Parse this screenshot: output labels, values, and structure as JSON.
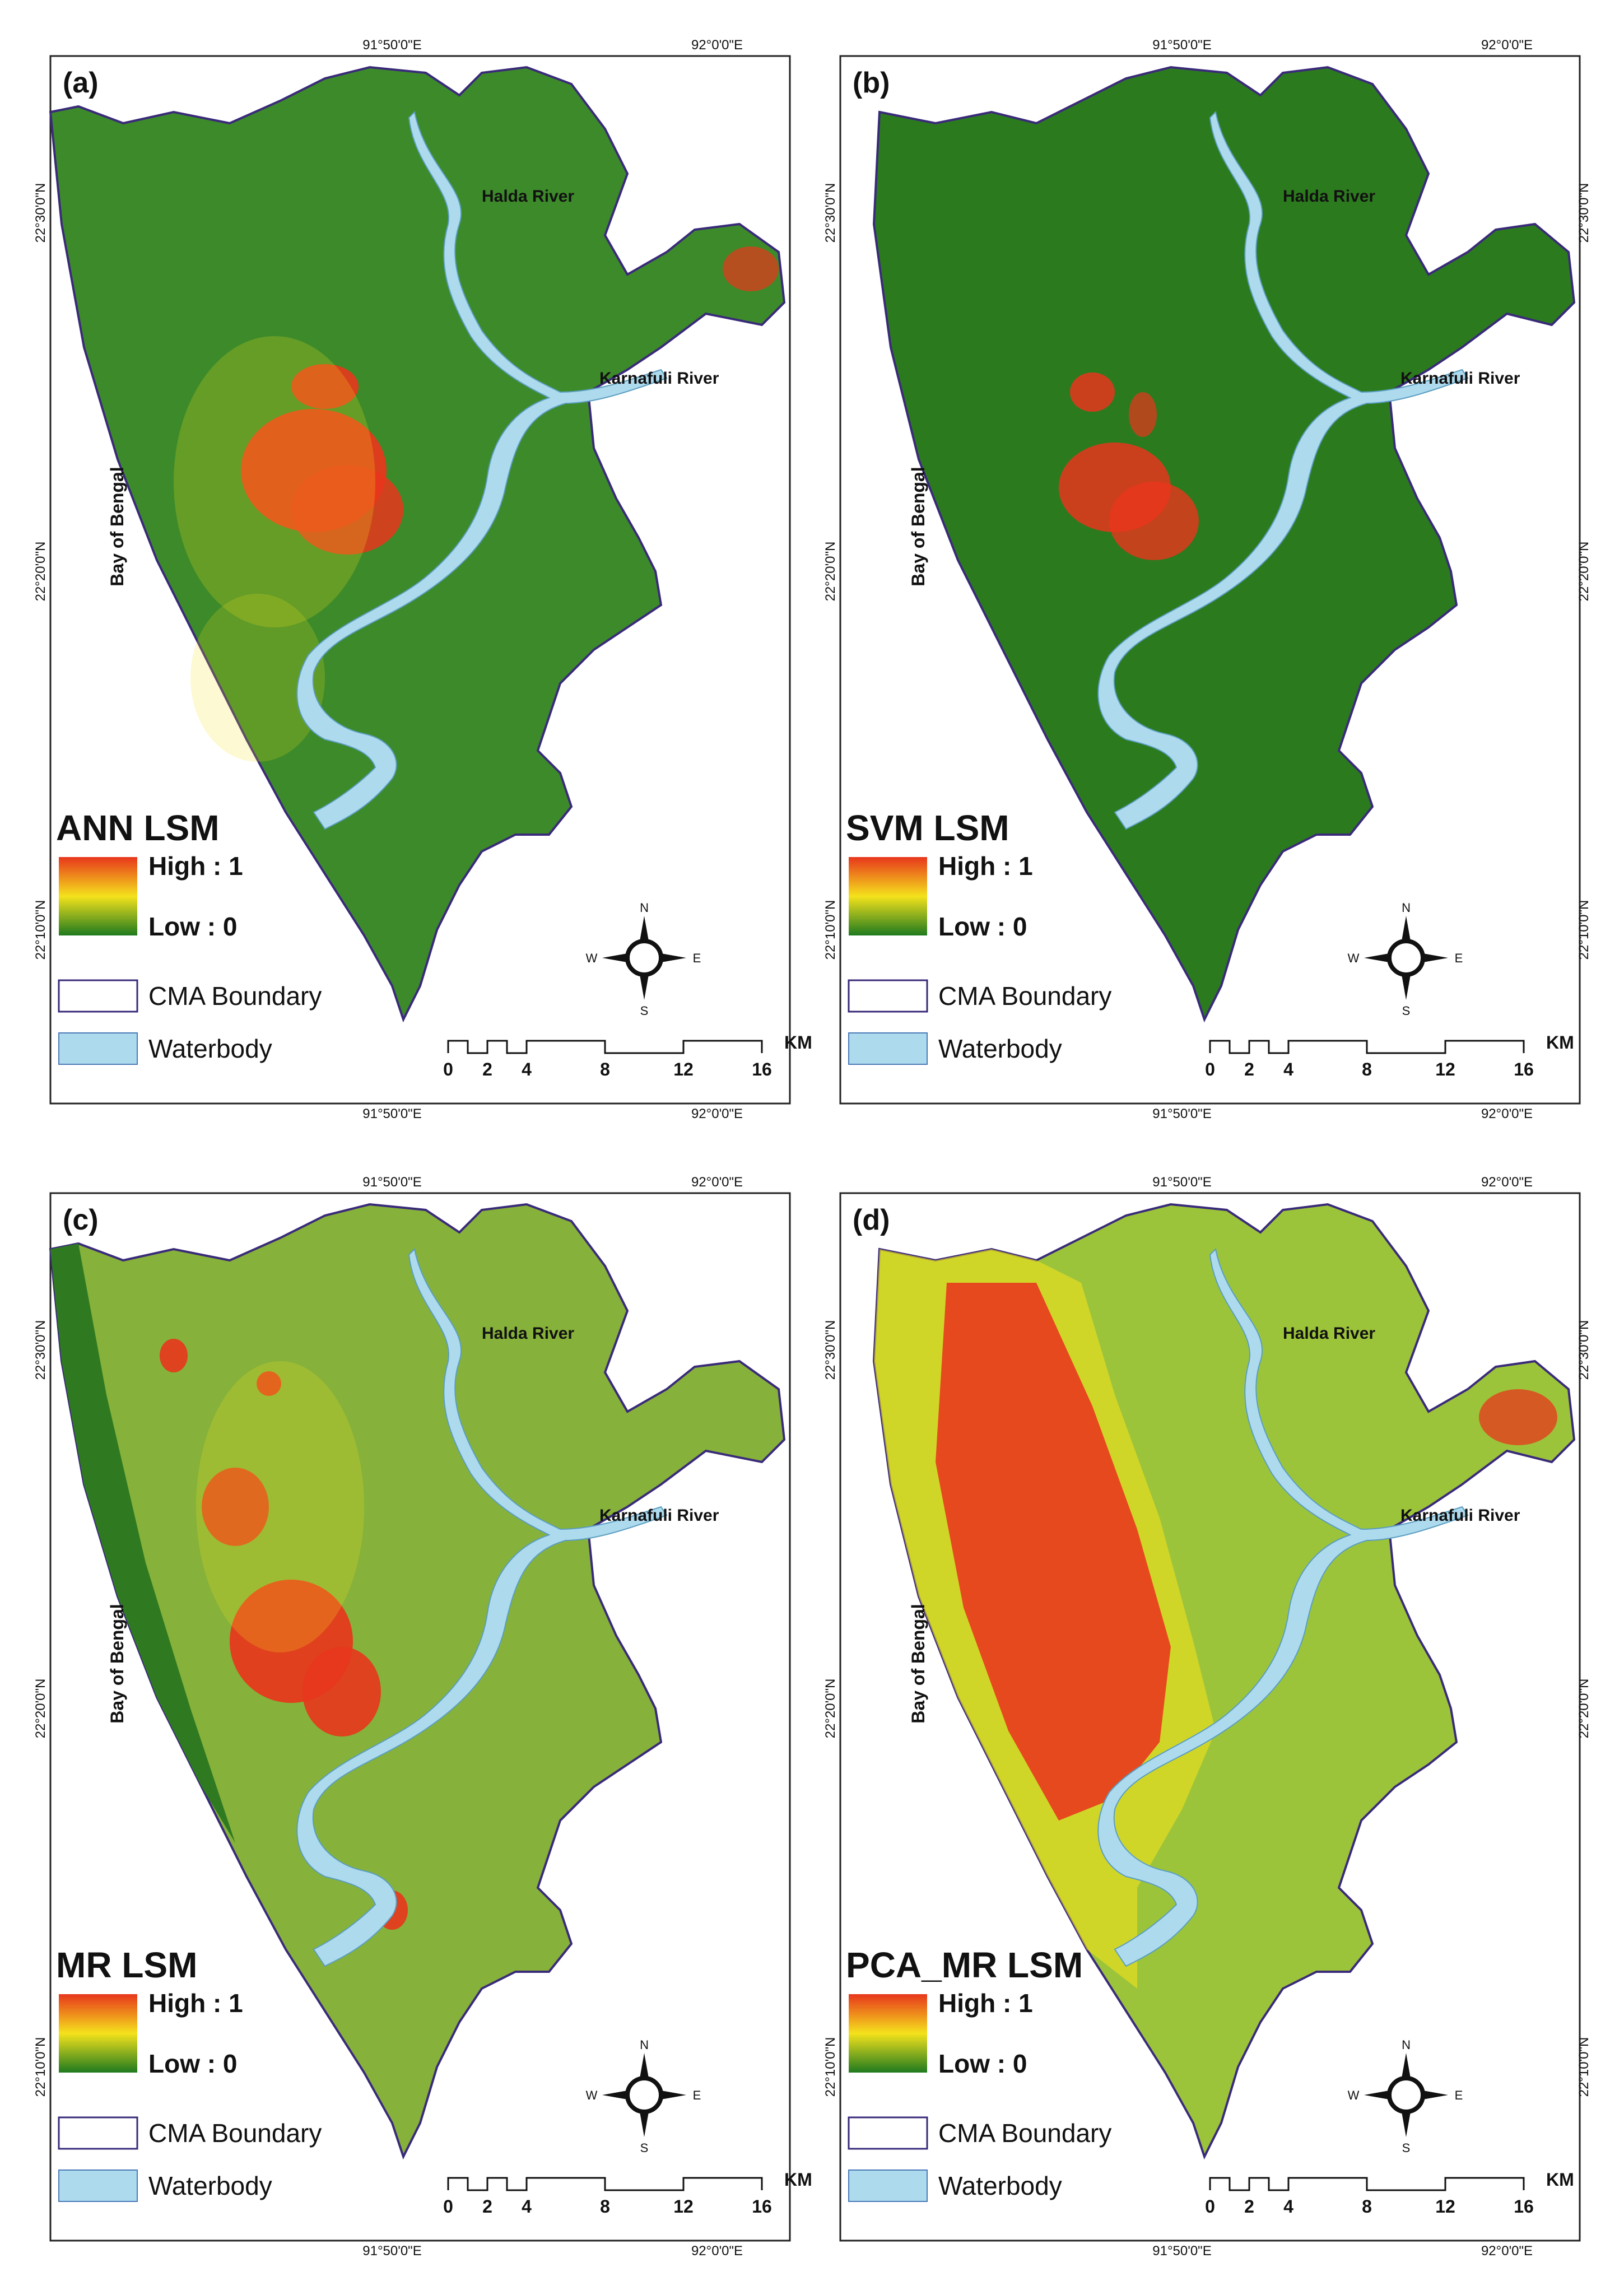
{
  "lon_labels": [
    "91°50'0\"E",
    "92°0'0\"E"
  ],
  "lat_labels": [
    "22°30'0\"N",
    "22°20'0\"N",
    "22°10'0\"N"
  ],
  "place_labels": {
    "halda": "Halda River",
    "karnafuli": "Karnafuli River",
    "bay": "Bay of Bengal"
  },
  "legend": {
    "high": "High : 1",
    "low": "Low : 0",
    "boundary": "CMA Boundary",
    "waterbody": "Waterbody"
  },
  "compass": {
    "n": "N",
    "s": "S",
    "e": "E",
    "w": "W"
  },
  "scale": {
    "ticks": [
      "0",
      "2",
      "4",
      "8",
      "12",
      "16"
    ],
    "unit": "KM"
  },
  "colors": {
    "high": "#e8361c",
    "mid": "#f4e21c",
    "low": "#1f7a1f",
    "waterbody": "#aedaee",
    "boundary": "#3a2a7a",
    "base_dark": "#2f7a21"
  },
  "panels": [
    {
      "id": "a",
      "label": "(a)",
      "title": "ANN LSM",
      "base": "#3d8a2a"
    },
    {
      "id": "b",
      "label": "(b)",
      "title": "SVM LSM",
      "base": "#2c7a1e"
    },
    {
      "id": "c",
      "label": "(c)",
      "title": "MR LSM",
      "base": "#86b13a"
    },
    {
      "id": "d",
      "label": "(d)",
      "title": "PCA_MR LSM",
      "base": "#9cc43a"
    }
  ]
}
